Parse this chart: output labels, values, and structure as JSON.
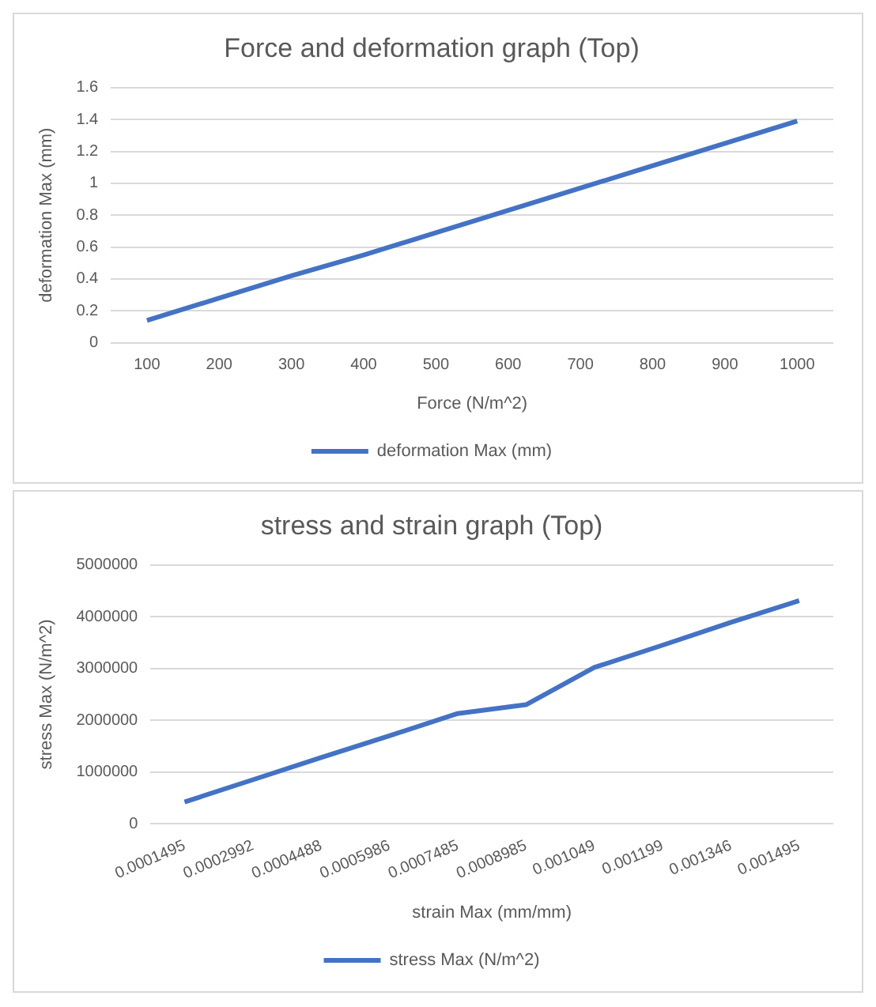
{
  "chart_data": [
    {
      "type": "line",
      "title": "Force and deformation graph (Top)",
      "xlabel": "Force (N/m^2)",
      "ylabel": "deformation Max (mm)",
      "categories": [
        "100",
        "200",
        "300",
        "400",
        "500",
        "600",
        "700",
        "800",
        "900",
        "1000"
      ],
      "series": [
        {
          "name": "deformation Max (mm)",
          "color": "#4472c4",
          "values": [
            0.14,
            0.28,
            0.42,
            0.55,
            0.69,
            0.83,
            0.97,
            1.11,
            1.25,
            1.39
          ]
        }
      ],
      "ylim": [
        0,
        1.6
      ],
      "yticks": [
        0,
        0.2,
        0.4,
        0.6,
        0.8,
        1,
        1.2,
        1.4,
        1.6
      ],
      "grid": "y",
      "legend": "bottom",
      "marker": "none",
      "line_style": "solid"
    },
    {
      "type": "line",
      "title": "stress and strain graph (Top)",
      "xlabel": "strain Max (mm/mm)",
      "ylabel": "stress Max (N/m^2)",
      "categories": [
        "0.0001495",
        "0.0002992",
        "0.0004488",
        "0.0005986",
        "0.0007485",
        "0.0008985",
        "0.001049",
        "0.001199",
        "0.001346",
        "0.001495"
      ],
      "series": [
        {
          "name": "stress Max (N/m^2)",
          "color": "#4472c4",
          "values": [
            420000,
            850000,
            1280000,
            1700000,
            2130000,
            2300000,
            3020000,
            3450000,
            3890000,
            4310000
          ]
        }
      ],
      "ylim": [
        0,
        5000000
      ],
      "yticks": [
        0,
        1000000,
        2000000,
        3000000,
        4000000,
        5000000
      ],
      "grid": "y",
      "legend": "bottom",
      "marker": "none",
      "line_style": "solid"
    }
  ]
}
